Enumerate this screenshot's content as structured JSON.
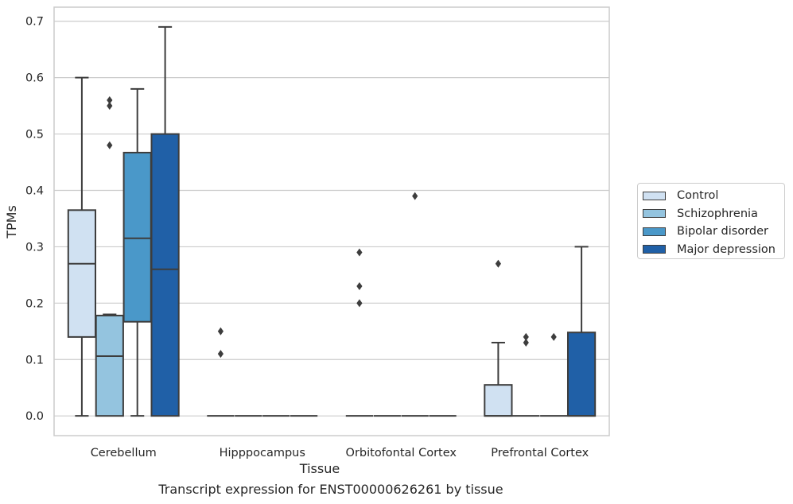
{
  "caption": "Transcript expression for ENST00000626261 by tissue",
  "chart_data": {
    "type": "boxplot",
    "title": "",
    "xlabel": "Tissue",
    "ylabel": "TPMs",
    "ylim": [
      -0.035,
      0.725
    ],
    "yticks": [
      0.0,
      0.1,
      0.2,
      0.3,
      0.4,
      0.5,
      0.6,
      0.7
    ],
    "ytick_labels": [
      "0.0",
      "0.1",
      "0.2",
      "0.3",
      "0.4",
      "0.5",
      "0.6",
      "0.7"
    ],
    "grid": "horizontal",
    "legend_position": "right",
    "categories": [
      "Cerebellum",
      "Hipppocampus",
      "Orbitofontal Cortex",
      "Prefrontal Cortex"
    ],
    "series": [
      {
        "name": "Control",
        "color": "#d0e1f2",
        "boxes": [
          {
            "whislo": 0.0,
            "q1": 0.14,
            "med": 0.27,
            "q3": 0.365,
            "whishi": 0.6,
            "fliers": []
          },
          {
            "whislo": 0.0,
            "q1": 0.0,
            "med": 0.0,
            "q3": 0.0,
            "whishi": 0.0,
            "fliers": [
              0.11,
              0.15
            ]
          },
          {
            "whislo": 0.0,
            "q1": 0.0,
            "med": 0.0,
            "q3": 0.0,
            "whishi": 0.0,
            "fliers": [
              0.2,
              0.23,
              0.29
            ]
          },
          {
            "whislo": 0.0,
            "q1": 0.0,
            "med": 0.0,
            "q3": 0.055,
            "whishi": 0.13,
            "fliers": [
              0.27
            ]
          }
        ]
      },
      {
        "name": "Schizophrenia",
        "color": "#94c4df",
        "boxes": [
          {
            "whislo": 0.0,
            "q1": 0.0,
            "med": 0.106,
            "q3": 0.178,
            "whishi": 0.18,
            "fliers": [
              0.48,
              0.55,
              0.56
            ]
          },
          {
            "whislo": 0.0,
            "q1": 0.0,
            "med": 0.0,
            "q3": 0.0,
            "whishi": 0.0,
            "fliers": []
          },
          {
            "whislo": 0.0,
            "q1": 0.0,
            "med": 0.0,
            "q3": 0.0,
            "whishi": 0.0,
            "fliers": []
          },
          {
            "whislo": 0.0,
            "q1": 0.0,
            "med": 0.0,
            "q3": 0.0,
            "whishi": 0.0,
            "fliers": [
              0.13,
              0.14
            ]
          }
        ]
      },
      {
        "name": "Bipolar disorder",
        "color": "#4a98c9",
        "boxes": [
          {
            "whislo": 0.0,
            "q1": 0.167,
            "med": 0.315,
            "q3": 0.467,
            "whishi": 0.58,
            "fliers": []
          },
          {
            "whislo": 0.0,
            "q1": 0.0,
            "med": 0.0,
            "q3": 0.0,
            "whishi": 0.0,
            "fliers": []
          },
          {
            "whislo": 0.0,
            "q1": 0.0,
            "med": 0.0,
            "q3": 0.0,
            "whishi": 0.0,
            "fliers": [
              0.39
            ]
          },
          {
            "whislo": 0.0,
            "q1": 0.0,
            "med": 0.0,
            "q3": 0.0,
            "whishi": 0.0,
            "fliers": [
              0.14
            ]
          }
        ]
      },
      {
        "name": "Major depression",
        "color": "#2060a7",
        "boxes": [
          {
            "whislo": 0.0,
            "q1": 0.0,
            "med": 0.26,
            "q3": 0.5,
            "whishi": 0.69,
            "fliers": []
          },
          {
            "whislo": 0.0,
            "q1": 0.0,
            "med": 0.0,
            "q3": 0.0,
            "whishi": 0.0,
            "fliers": []
          },
          {
            "whislo": 0.0,
            "q1": 0.0,
            "med": 0.0,
            "q3": 0.0,
            "whishi": 0.0,
            "fliers": []
          },
          {
            "whislo": 0.0,
            "q1": 0.0,
            "med": 0.0,
            "q3": 0.148,
            "whishi": 0.3,
            "fliers": []
          }
        ]
      }
    ]
  }
}
